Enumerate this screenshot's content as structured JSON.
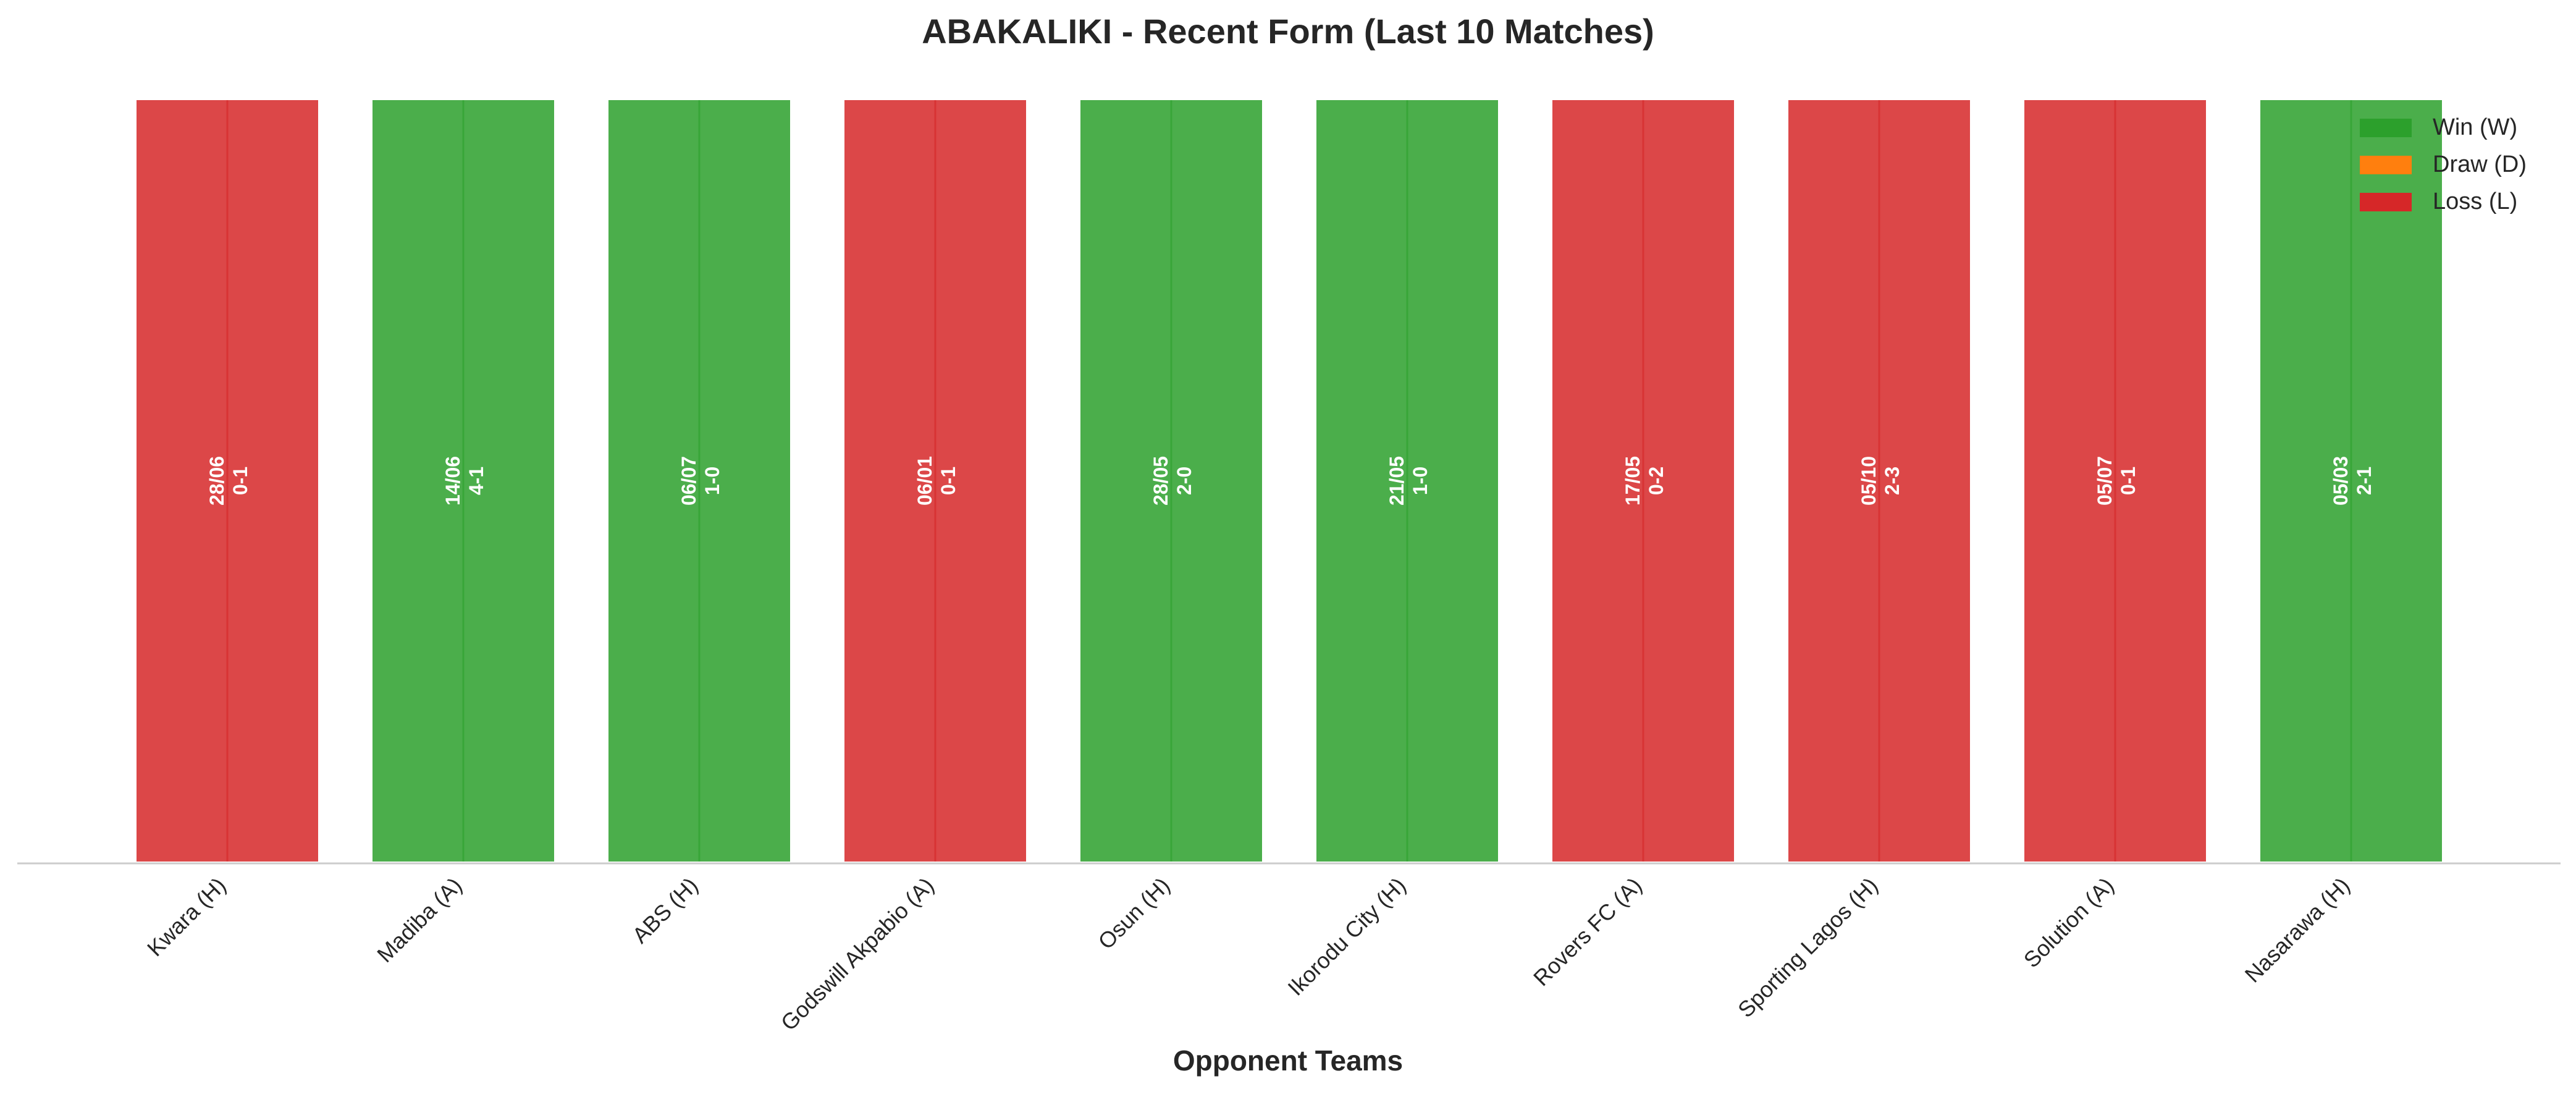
{
  "chart_data": {
    "type": "bar",
    "title": "ABAKALIKI - Recent Form (Last 10 Matches)",
    "xlabel": "Opponent Teams",
    "ylabel": "",
    "categories": [
      "Kwara (H)",
      "Madiba (A)",
      "ABS (H)",
      "Godswill Akpabio (A)",
      "Osun (H)",
      "Ikorodu City (H)",
      "Rovers FC (A)",
      "Sporting Lagos (H)",
      "Solution (A)",
      "Nasarawa (H)"
    ],
    "values": [
      1,
      1,
      1,
      1,
      1,
      1,
      1,
      1,
      1,
      1
    ],
    "results": [
      "L",
      "W",
      "W",
      "L",
      "W",
      "W",
      "L",
      "L",
      "L",
      "W"
    ],
    "dates": [
      "28/06",
      "14/06",
      "06/07",
      "06/01",
      "28/05",
      "21/05",
      "17/05",
      "05/10",
      "05/07",
      "05/03"
    ],
    "scores": [
      "0-1",
      "4-1",
      "1-0",
      "0-1",
      "2-0",
      "1-0",
      "0-2",
      "2-3",
      "0-1",
      "2-1"
    ],
    "ylim": [
      0,
      1
    ],
    "grid": false,
    "legend": {
      "position": "top-right",
      "entries": [
        {
          "key": "W",
          "label": "Win (W)"
        },
        {
          "key": "D",
          "label": "Draw (D)"
        },
        {
          "key": "L",
          "label": "Loss (L)"
        }
      ]
    },
    "colors": {
      "W": "#2ca02c",
      "D": "#ff7f0e",
      "L": "#d62728"
    }
  }
}
